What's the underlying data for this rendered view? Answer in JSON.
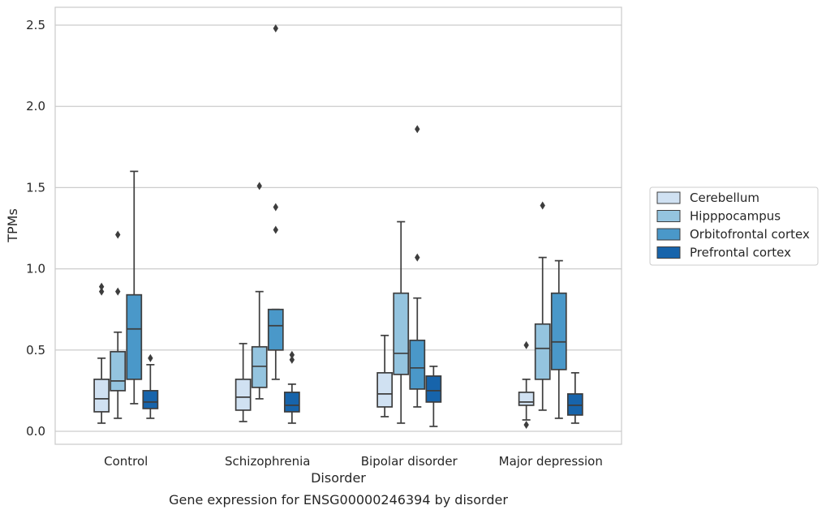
{
  "caption": "Gene expression for ENSG00000246394 by disorder",
  "colors": {
    "Cerebellum": "#d0e1f2",
    "Hipppocampus": "#94c4df",
    "Orbitofrontal cortex": "#4a98c9",
    "Prefrontal cortex": "#1764ab",
    "line": "#3d3d3d",
    "grid": "#cccccc",
    "frame": "#cccccc"
  },
  "chart_data": {
    "type": "box",
    "title": "",
    "xlabel": "Disorder",
    "ylabel": "TPMs",
    "ylim": [
      -0.08,
      2.61
    ],
    "yticks": [
      0.0,
      0.5,
      1.0,
      1.5,
      2.0,
      2.5
    ],
    "ytick_labels": [
      "0.0",
      "0.5",
      "1.0",
      "1.5",
      "2.0",
      "2.5"
    ],
    "grid": "horizontal",
    "legend_position": "right",
    "categories": [
      "Control",
      "Schizophrenia",
      "Bipolar disorder",
      "Major depression"
    ],
    "series": [
      {
        "name": "Cerebellum",
        "boxes": [
          {
            "whisker_low": 0.05,
            "q1": 0.12,
            "median": 0.2,
            "q3": 0.32,
            "whisker_high": 0.45,
            "outliers": [
              0.86,
              0.89
            ]
          },
          {
            "whisker_low": 0.06,
            "q1": 0.13,
            "median": 0.21,
            "q3": 0.32,
            "whisker_high": 0.54,
            "outliers": []
          },
          {
            "whisker_low": 0.09,
            "q1": 0.15,
            "median": 0.23,
            "q3": 0.36,
            "whisker_high": 0.59,
            "outliers": []
          },
          {
            "whisker_low": 0.07,
            "q1": 0.16,
            "median": 0.18,
            "q3": 0.24,
            "whisker_high": 0.32,
            "outliers": [
              0.53,
              0.04
            ]
          }
        ]
      },
      {
        "name": "Hipppocampus",
        "boxes": [
          {
            "whisker_low": 0.08,
            "q1": 0.25,
            "median": 0.31,
            "q3": 0.49,
            "whisker_high": 0.61,
            "outliers": [
              0.86,
              1.21
            ]
          },
          {
            "whisker_low": 0.2,
            "q1": 0.27,
            "median": 0.4,
            "q3": 0.52,
            "whisker_high": 0.86,
            "outliers": [
              1.51
            ]
          },
          {
            "whisker_low": 0.05,
            "q1": 0.35,
            "median": 0.48,
            "q3": 0.85,
            "whisker_high": 1.29,
            "outliers": []
          },
          {
            "whisker_low": 0.13,
            "q1": 0.32,
            "median": 0.51,
            "q3": 0.66,
            "whisker_high": 1.07,
            "outliers": [
              1.39
            ]
          }
        ]
      },
      {
        "name": "Orbitofrontal cortex",
        "boxes": [
          {
            "whisker_low": 0.17,
            "q1": 0.32,
            "median": 0.63,
            "q3": 0.84,
            "whisker_high": 1.6,
            "outliers": []
          },
          {
            "whisker_low": 0.32,
            "q1": 0.5,
            "median": 0.65,
            "q3": 0.75,
            "whisker_high": 0.75,
            "outliers": [
              1.24,
              1.38,
              2.48
            ]
          },
          {
            "whisker_low": 0.15,
            "q1": 0.26,
            "median": 0.39,
            "q3": 0.56,
            "whisker_high": 0.82,
            "outliers": [
              1.07,
              1.86
            ]
          },
          {
            "whisker_low": 0.08,
            "q1": 0.38,
            "median": 0.55,
            "q3": 0.85,
            "whisker_high": 1.05,
            "outliers": []
          }
        ]
      },
      {
        "name": "Prefrontal cortex",
        "boxes": [
          {
            "whisker_low": 0.08,
            "q1": 0.14,
            "median": 0.18,
            "q3": 0.25,
            "whisker_high": 0.41,
            "outliers": [
              0.45
            ]
          },
          {
            "whisker_low": 0.05,
            "q1": 0.12,
            "median": 0.16,
            "q3": 0.24,
            "whisker_high": 0.29,
            "outliers": [
              0.44,
              0.47
            ]
          },
          {
            "whisker_low": 0.03,
            "q1": 0.18,
            "median": 0.25,
            "q3": 0.34,
            "whisker_high": 0.4,
            "outliers": []
          },
          {
            "whisker_low": 0.05,
            "q1": 0.1,
            "median": 0.16,
            "q3": 0.23,
            "whisker_high": 0.36,
            "outliers": []
          }
        ]
      }
    ]
  }
}
